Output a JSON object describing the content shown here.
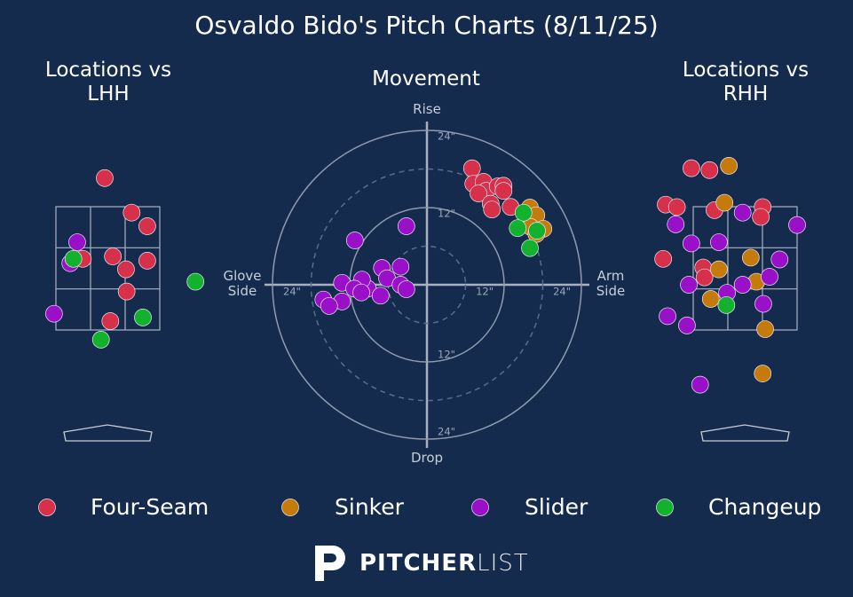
{
  "title": "Osvaldo Bido's Pitch Charts (8/11/25)",
  "chart_data": [
    {
      "type": "scatter",
      "title": "Locations vs LHH",
      "xlim": [
        -1.5,
        1.5
      ],
      "ylim": [
        0,
        5
      ],
      "series": [
        {
          "color": "#d7304b",
          "x": [
            -0.05,
            0.38,
            0.63,
            -0.4,
            0.08,
            0.29,
            0.63,
            0.3,
            0.04
          ],
          "values": [
            3.96,
            3.4,
            3.18,
            2.65,
            2.69,
            2.48,
            2.62,
            2.12,
            1.64
          ]
        },
        {
          "color": "#c57a0c",
          "x": [],
          "values": []
        },
        {
          "color": "#9a10c9",
          "x": [
            -0.49,
            -0.6,
            -0.86
          ],
          "values": [
            2.92,
            2.58,
            1.76
          ]
        },
        {
          "color": "#12b12e",
          "x": [
            -0.55,
            1.4,
            0.56,
            -0.11
          ],
          "values": [
            2.65,
            2.28,
            1.7,
            1.34
          ]
        }
      ]
    },
    {
      "type": "scatter",
      "title": "Movement",
      "xlim": [
        -24,
        24
      ],
      "ylim": [
        -24,
        24
      ],
      "rings": [
        {
          "value": 12,
          "label": "12\""
        },
        {
          "value": 24,
          "label": "24\""
        }
      ],
      "minor_rings": [
        6,
        18
      ],
      "top_label": "Rise",
      "bottom_label": "Drop",
      "left_label": "Glove Side",
      "right_label": "Arm Side",
      "series": [
        {
          "name": "Four-Seam",
          "color": "#d7304b",
          "x": [
            7.0,
            7.2,
            8.8,
            9.2,
            11.0,
            11.9,
            11.9,
            8.0,
            9.9,
            10.1,
            13.0
          ],
          "values": [
            18.1,
            15.7,
            16.0,
            14.6,
            15.3,
            15.4,
            14.6,
            14.2,
            12.6,
            11.7,
            12.1
          ]
        },
        {
          "name": "Sinker",
          "color": "#c57a0c",
          "x": [
            16.0,
            17.0,
            18.1,
            16.1,
            17.0
          ],
          "values": [
            12.0,
            10.8,
            8.7,
            9.0,
            7.9
          ]
        },
        {
          "name": "Slider",
          "color": "#9a10c9",
          "x": [
            -3.2,
            -11.2,
            -7.0,
            -4.1,
            -6.2,
            -9.2,
            -10.1,
            -13.2,
            -11.3,
            -4.1,
            -3.2,
            -7.2,
            -10.2,
            -13.2,
            -16.1,
            -15.2
          ],
          "values": [
            9.1,
            6.9,
            2.6,
            2.8,
            1.0,
            -0.6,
            0.8,
            0.3,
            -0.6,
            0,
            -0.7,
            -1.7,
            -1.2,
            -2.6,
            -2.3,
            -3.3
          ]
        },
        {
          "name": "Changeup",
          "color": "#12b12e",
          "x": [
            15.0,
            14.1,
            17.1,
            16.0
          ],
          "values": [
            11.2,
            8.8,
            8.4,
            5.7
          ]
        }
      ]
    },
    {
      "type": "scatter",
      "title": "Locations vs RHH",
      "xlim": [
        -1.5,
        1.5
      ],
      "ylim": [
        0,
        5
      ],
      "series": [
        {
          "color": "#d7304b",
          "x": [
            -0.86,
            -0.57,
            -1.27,
            -1.09,
            -0.49,
            0.28,
            0.25,
            -1.31,
            -0.67,
            -0.65
          ],
          "values": [
            4.12,
            4.09,
            3.53,
            3.49,
            3.44,
            3.49,
            3.33,
            2.65,
            2.51,
            2.35
          ]
        },
        {
          "color": "#c57a0c",
          "x": [
            -0.26,
            -0.33,
            0.09,
            -0.42,
            0.18,
            -0.55,
            0.32,
            0.28
          ],
          "values": [
            4.16,
            3.56,
            2.67,
            2.48,
            2.28,
            2.0,
            1.51,
            0.79
          ]
        },
        {
          "color": "#9a10c9",
          "x": [
            -1.11,
            -0.04,
            0.83,
            -0.86,
            -0.42,
            0.55,
            0.39,
            -0.9,
            -0.29,
            -0.04,
            0.29,
            -1.24,
            -0.93,
            -0.72
          ],
          "values": [
            3.21,
            3.4,
            3.2,
            2.9,
            2.92,
            2.64,
            2.36,
            2.23,
            2.1,
            2.23,
            1.92,
            1.72,
            1.57,
            0.61
          ]
        },
        {
          "color": "#12b12e",
          "x": [
            -0.3
          ],
          "values": [
            1.9
          ]
        }
      ]
    }
  ],
  "logo": {
    "bold": "PITCHER",
    "light": "LIST"
  }
}
